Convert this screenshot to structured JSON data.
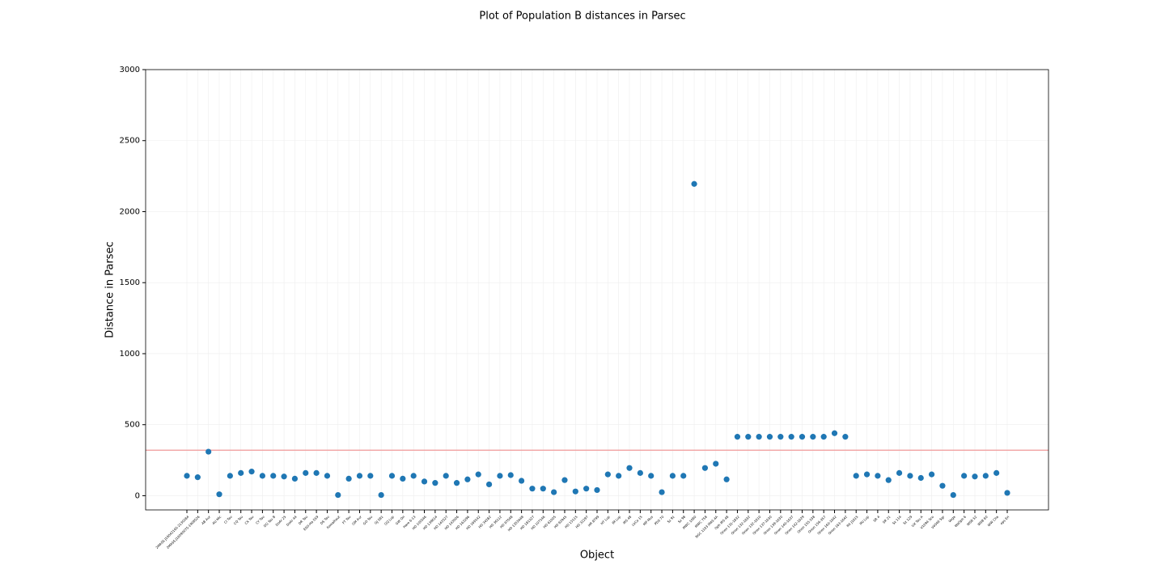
{
  "chart_data": {
    "type": "scatter",
    "title": "Plot of Population B distances in Parsec",
    "xlabel": "Object",
    "ylabel": "Distance in Parsec",
    "categories": [
      "2MASS J16042165-2130284",
      "2MASS J16090075-1908526",
      "AB Aur",
      "AU Mic",
      "CI Tau",
      "CQ Tau",
      "CX Tau",
      "CY Tau",
      "DG Tau B",
      "DoAr 25",
      "DoAr 44",
      "DR Tau",
      "ESO-Ha 559",
      "DS Tau",
      "Fomalhaut",
      "FT Tau",
      "GM Aur",
      "GO Tau",
      "GJ 581",
      "GQ Lup",
      "GW Ori",
      "Haro 6-13",
      "HD 100546",
      "HD 139614",
      "HD 142527",
      "HD 143006",
      "HD 163296",
      "HD 169142",
      "HD 34282",
      "HD 36112",
      "HD 97048",
      "HD 135344B",
      "HD 181327",
      "HD 107146",
      "HD 61005",
      "HD 92945",
      "HD 15115",
      "HD 32297",
      "HR 8799",
      "HT Lup",
      "IM Lup",
      "IRS 48",
      "LkCa 15",
      "MP Mus",
      "PDS 70",
      "Sz 91",
      "Sz 98",
      "MWC 1080",
      "MWC 758",
      "NGC 1333 IRAS 4A",
      "Oph IRS 48",
      "Orion 131-1832",
      "Orion 132-1832",
      "Orion 132-1610",
      "Orion 137-1630",
      "Orion 139-1630",
      "Orion 140-1637",
      "Orion 142-1629",
      "Orion 155-338",
      "Orion 156-357",
      "Orion 160-1642",
      "Orion 163-1642",
      "RX J1615",
      "RU Lup",
      "SR 4",
      "SR 21",
      "Sz 114",
      "Sz 129",
      "UX Tau A",
      "V1094 Sco",
      "V4046 Sgr",
      "Vega",
      "WaOph 6",
      "WSB 52",
      "WSB 60",
      "WW Cha",
      "eps Eri"
    ],
    "values": [
      140,
      130,
      310,
      10,
      140,
      160,
      170,
      140,
      140,
      135,
      120,
      160,
      160,
      140,
      5,
      120,
      140,
      140,
      5,
      140,
      120,
      140,
      100,
      90,
      140,
      90,
      115,
      150,
      80,
      140,
      145,
      105,
      50,
      50,
      25,
      110,
      30,
      50,
      40,
      150,
      140,
      195,
      160,
      140,
      25,
      140,
      140,
      2195,
      195,
      225,
      115,
      415,
      415,
      415,
      415,
      415,
      415,
      415,
      415,
      415,
      440,
      415,
      140,
      150,
      140,
      110,
      160,
      140,
      125,
      150,
      70,
      5,
      140,
      135,
      140,
      160,
      20
    ],
    "color": "#1f77b4",
    "hline": {
      "value": 320,
      "color": "#f2a8a8"
    },
    "ylim": [
      -100,
      3000
    ],
    "yticks": [
      0,
      500,
      1000,
      1500,
      2000,
      2500,
      3000
    ],
    "grid": true
  }
}
